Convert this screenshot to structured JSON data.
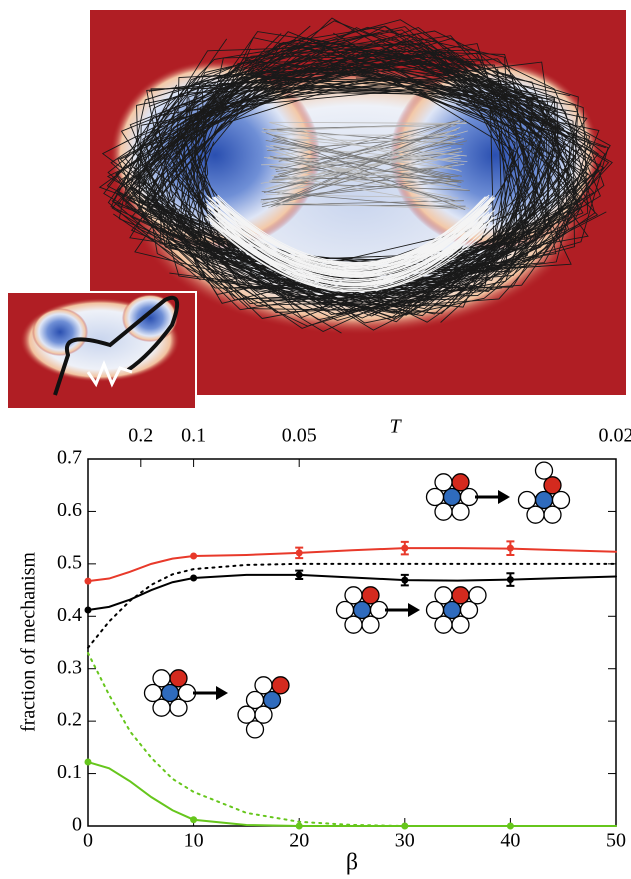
{
  "chart_data": {
    "type": "line",
    "xlabel": "β",
    "ylabel": "fraction of mechanism",
    "x2label": "T",
    "xlim": [
      0,
      50
    ],
    "ylim": [
      0,
      0.7
    ],
    "xticks": [
      0,
      10,
      20,
      30,
      40,
      50
    ],
    "yticks": [
      0,
      0.1,
      0.2,
      0.3,
      0.4,
      0.5,
      0.6,
      0.7
    ],
    "x2ticks": [
      {
        "value": 5,
        "label": "0.2"
      },
      {
        "value": 10,
        "label": "0.1"
      },
      {
        "value": 20,
        "label": "0.05"
      },
      {
        "value": 50,
        "label": "0.02"
      }
    ],
    "series": [
      {
        "color": "#e8392a",
        "dashed": false,
        "x": [
          0,
          2,
          4,
          6,
          8,
          10,
          15,
          20,
          25,
          30,
          35,
          40,
          45,
          50
        ],
        "values": [
          0.467,
          0.472,
          0.485,
          0.5,
          0.51,
          0.515,
          0.517,
          0.521,
          0.526,
          0.53,
          0.53,
          0.529,
          0.526,
          0.523
        ]
      },
      {
        "color": "#000000",
        "dashed": false,
        "x": [
          0,
          2,
          4,
          6,
          8,
          10,
          15,
          20,
          25,
          30,
          35,
          40,
          45,
          50
        ],
        "values": [
          0.412,
          0.418,
          0.432,
          0.45,
          0.465,
          0.473,
          0.479,
          0.479,
          0.474,
          0.469,
          0.468,
          0.47,
          0.473,
          0.476
        ]
      },
      {
        "color": "#66c61c",
        "dashed": false,
        "x": [
          0,
          2,
          4,
          6,
          8,
          10,
          15,
          20,
          25,
          30,
          35,
          40,
          45,
          50
        ],
        "values": [
          0.122,
          0.11,
          0.085,
          0.055,
          0.03,
          0.012,
          0.002,
          0,
          0,
          0,
          0,
          0,
          0,
          0
        ]
      },
      {
        "color": "#000000",
        "dashed": true,
        "x": [
          0,
          2,
          4,
          6,
          8,
          10,
          15,
          20,
          25,
          30,
          35,
          40,
          45,
          50
        ],
        "values": [
          0.34,
          0.39,
          0.43,
          0.46,
          0.48,
          0.49,
          0.498,
          0.5,
          0.5,
          0.5,
          0.5,
          0.5,
          0.5,
          0.5
        ]
      },
      {
        "color": "#66c61c",
        "dashed": true,
        "x": [
          0,
          2,
          4,
          6,
          8,
          10,
          15,
          20,
          25,
          30,
          35,
          40,
          45,
          50
        ],
        "values": [
          0.33,
          0.25,
          0.18,
          0.13,
          0.09,
          0.065,
          0.025,
          0.008,
          0.002,
          0,
          0,
          0,
          0,
          0
        ]
      }
    ],
    "points": [
      {
        "color": "#e8392a",
        "x": [
          0,
          10,
          20,
          30,
          40
        ],
        "values": [
          0.467,
          0.515,
          0.521,
          0.53,
          0.53
        ],
        "errors": [
          null,
          null,
          0.01,
          0.012,
          0.013
        ]
      },
      {
        "color": "#000000",
        "x": [
          0,
          10,
          20,
          30,
          40
        ],
        "values": [
          0.412,
          0.473,
          0.479,
          0.469,
          0.47
        ],
        "errors": [
          null,
          null,
          0.008,
          0.01,
          0.012
        ]
      },
      {
        "color": "#66c61c",
        "x": [
          0,
          10,
          20,
          30,
          40
        ],
        "values": [
          0.122,
          0.012,
          0,
          0,
          0
        ],
        "errors": [
          null,
          null,
          null,
          null,
          null
        ]
      }
    ]
  }
}
